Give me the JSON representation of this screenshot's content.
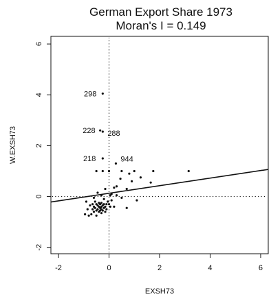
{
  "chart_data": {
    "type": "scatter",
    "title": "German Export Share 1973",
    "subtitle": "Moran's I = 0.149",
    "xlabel": "EXSH73",
    "ylabel": "W.EXSH73",
    "xlim": [
      -2.3,
      6.3
    ],
    "ylim": [
      -2.25,
      6.3
    ],
    "xticks": [
      -2,
      0,
      2,
      4,
      6
    ],
    "yticks": [
      -2,
      0,
      2,
      4,
      6
    ],
    "grid": false,
    "reference_lines": {
      "x": 0,
      "y": 0,
      "style": "dotted"
    },
    "regression_line": {
      "intercept": 0.128,
      "slope": 0.149
    },
    "annotations": [
      {
        "label": "298",
        "x": -0.25,
        "y": 4.05
      },
      {
        "label": "228",
        "x": -0.35,
        "y": 2.6
      },
      {
        "label": "288",
        "x": -0.25,
        "y": 2.55
      },
      {
        "label": "218",
        "x": -0.25,
        "y": 1.5
      },
      {
        "label": "944",
        "x": 0.27,
        "y": 1.3
      }
    ],
    "points": [
      {
        "x": -0.25,
        "y": 4.05
      },
      {
        "x": -0.35,
        "y": 2.6
      },
      {
        "x": -0.25,
        "y": 2.55
      },
      {
        "x": -0.25,
        "y": 1.5
      },
      {
        "x": 0.27,
        "y": 1.3
      },
      {
        "x": -0.5,
        "y": 1.0
      },
      {
        "x": -0.25,
        "y": 1.0
      },
      {
        "x": 0.0,
        "y": 1.0
      },
      {
        "x": 0.5,
        "y": 1.0
      },
      {
        "x": 1.0,
        "y": 1.0
      },
      {
        "x": 1.75,
        "y": 1.0
      },
      {
        "x": 3.15,
        "y": 1.0
      },
      {
        "x": 0.8,
        "y": 0.9
      },
      {
        "x": 1.25,
        "y": 0.75
      },
      {
        "x": 0.45,
        "y": 0.7
      },
      {
        "x": 0.9,
        "y": 0.6
      },
      {
        "x": 1.65,
        "y": 0.55
      },
      {
        "x": 0.3,
        "y": 0.4
      },
      {
        "x": 0.2,
        "y": 0.35
      },
      {
        "x": -0.15,
        "y": 0.3
      },
      {
        "x": 0.7,
        "y": 0.3
      },
      {
        "x": -0.45,
        "y": 0.15
      },
      {
        "x": 0.1,
        "y": 0.1
      },
      {
        "x": -0.3,
        "y": 0.05
      },
      {
        "x": 0.05,
        "y": 0.05
      },
      {
        "x": 0.3,
        "y": 0.05
      },
      {
        "x": 0.5,
        "y": -0.05
      },
      {
        "x": -0.6,
        "y": -0.05
      },
      {
        "x": -0.2,
        "y": -0.1
      },
      {
        "x": 0.1,
        "y": -0.15
      },
      {
        "x": 1.1,
        "y": -0.15
      },
      {
        "x": -0.9,
        "y": -0.2
      },
      {
        "x": -0.55,
        "y": -0.2
      },
      {
        "x": -0.4,
        "y": -0.25
      },
      {
        "x": -0.3,
        "y": -0.25
      },
      {
        "x": -0.65,
        "y": -0.3
      },
      {
        "x": -0.5,
        "y": -0.3
      },
      {
        "x": -0.35,
        "y": -0.3
      },
      {
        "x": -0.2,
        "y": -0.3
      },
      {
        "x": -0.1,
        "y": -0.3
      },
      {
        "x": 0.0,
        "y": -0.3
      },
      {
        "x": -0.75,
        "y": -0.35
      },
      {
        "x": -0.45,
        "y": -0.35
      },
      {
        "x": -0.25,
        "y": -0.35
      },
      {
        "x": -0.6,
        "y": -0.4
      },
      {
        "x": -0.4,
        "y": -0.4
      },
      {
        "x": -0.3,
        "y": -0.4
      },
      {
        "x": -0.15,
        "y": -0.4
      },
      {
        "x": 0.05,
        "y": -0.4
      },
      {
        "x": 0.2,
        "y": -0.4
      },
      {
        "x": -0.55,
        "y": -0.45
      },
      {
        "x": -0.35,
        "y": -0.45
      },
      {
        "x": -0.2,
        "y": -0.45
      },
      {
        "x": -0.85,
        "y": -0.5
      },
      {
        "x": -0.65,
        "y": -0.5
      },
      {
        "x": -0.45,
        "y": -0.5
      },
      {
        "x": -0.3,
        "y": -0.5
      },
      {
        "x": -0.1,
        "y": -0.5
      },
      {
        "x": 0.7,
        "y": -0.45
      },
      {
        "x": -0.5,
        "y": -0.55
      },
      {
        "x": -0.35,
        "y": -0.55
      },
      {
        "x": -0.25,
        "y": -0.55
      },
      {
        "x": -0.6,
        "y": -0.6
      },
      {
        "x": -0.4,
        "y": -0.6
      },
      {
        "x": -0.15,
        "y": -0.6
      },
      {
        "x": -0.95,
        "y": -0.7
      },
      {
        "x": -0.7,
        "y": -0.7
      },
      {
        "x": -0.5,
        "y": -0.75
      },
      {
        "x": -0.8,
        "y": -0.75
      },
      {
        "x": -0.3,
        "y": -0.65
      },
      {
        "x": -0.05,
        "y": -0.2
      }
    ]
  }
}
